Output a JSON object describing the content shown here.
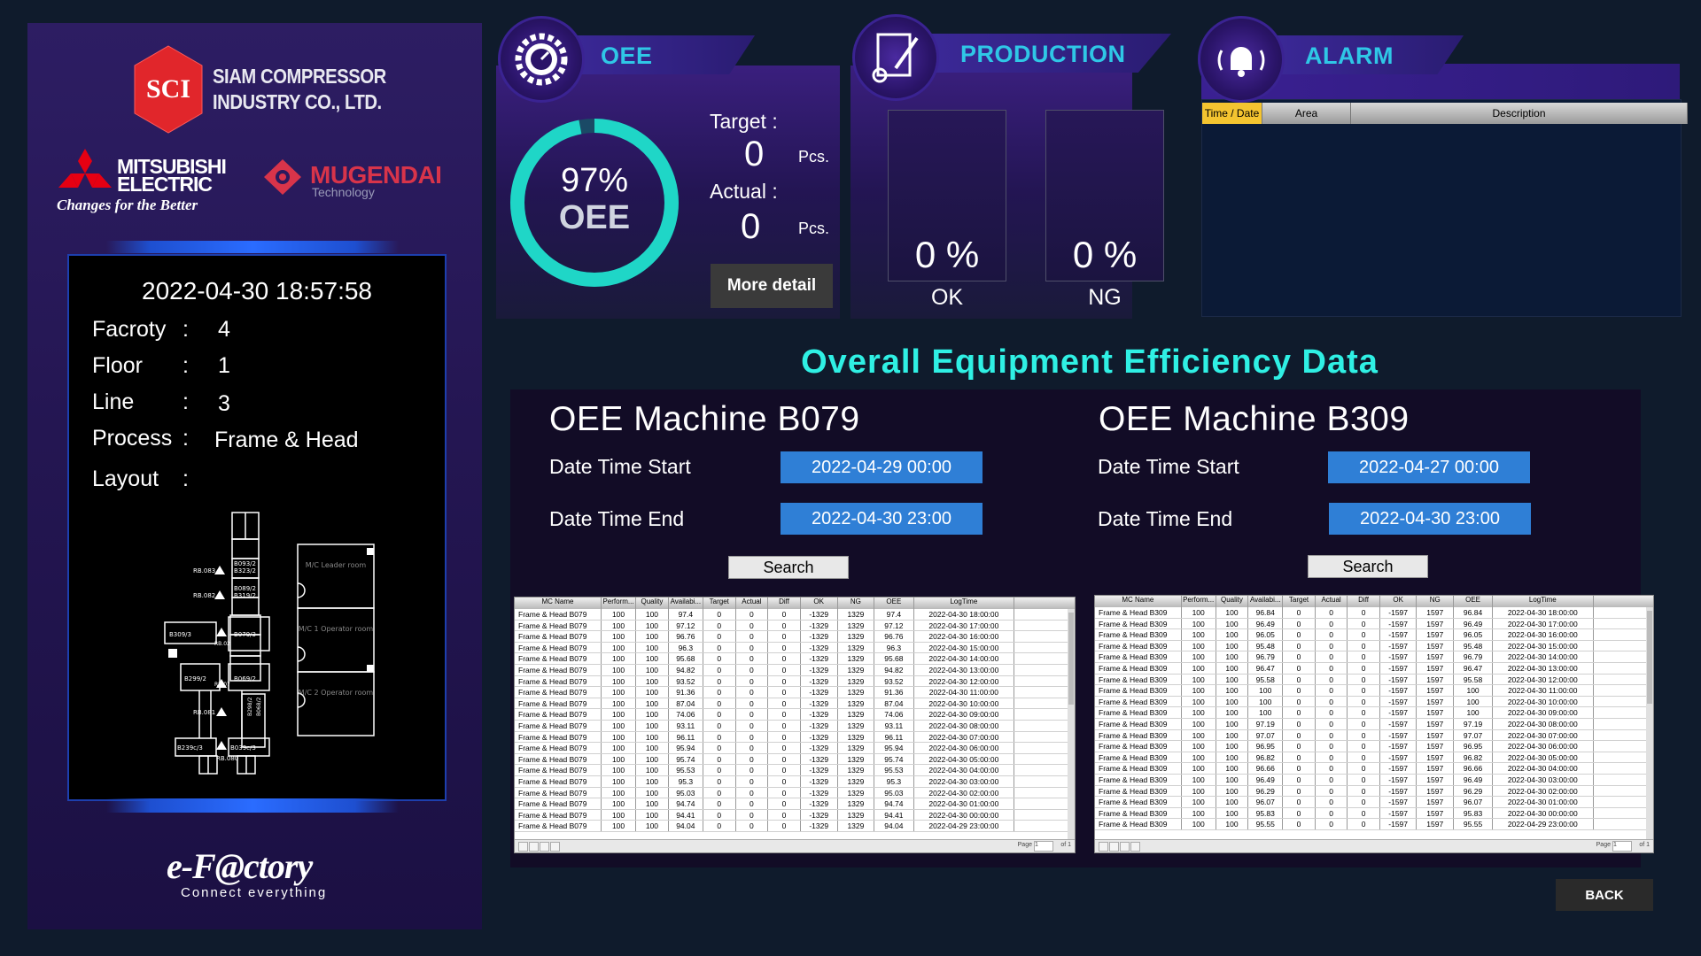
{
  "company": {
    "logo_text": "SCI",
    "name_line1": "SIAM COMPRESSOR",
    "name_line2": "INDUSTRY CO., LTD.",
    "mitsubishi_line1": "MITSUBISHI",
    "mitsubishi_line2": "ELECTRIC",
    "mitsubishi_slogan": "Changes for the Better",
    "mugendai_name": "MUGENDAI",
    "mugendai_sub": "Technology",
    "efactory": "e-F@ctory",
    "efactory_sub": "Connect everything"
  },
  "info": {
    "datetime": "2022-04-30 18:57:58",
    "factory_label": "Facroty",
    "factory_value": "4",
    "floor_label": "Floor",
    "floor_value": "1",
    "line_label": "Line",
    "line_value": "3",
    "process_label": "Process",
    "process_value": "Frame & Head",
    "layout_label": "Layout",
    "colon": ":",
    "layout_labels": {
      "rb083": "RB.083",
      "rb082": "RB.082",
      "rb081": "RB.081",
      "rb080": "RB.080",
      "b093": "B093/2",
      "b323": "B323/2",
      "b089": "B089/2",
      "b319": "B319/2",
      "b309": "B309/3",
      "b079": "B079/3",
      "b299": "B299/2",
      "b069": "B069/2",
      "b239": "B239c/3",
      "b039": "B039c/3",
      "rb02": "RB.02",
      "rb07": "RB.07",
      "b298": "B298/2",
      "b068": "B068/2",
      "mc_leader": "M/C Leader room",
      "mc_op1": "M/C 1 Operator room",
      "mc_op2": "M/C 2 Operator room"
    }
  },
  "oee_card": {
    "title": "OEE",
    "percent": "97%",
    "percent_value": 97,
    "gauge_label": "OEE",
    "target_label": "Target :",
    "target_value": "0",
    "target_unit": "Pcs.",
    "actual_label": "Actual :",
    "actual_value": "0",
    "actual_unit": "Pcs.",
    "more_button": "More detail",
    "gauge_color": "#1fd6c7"
  },
  "production_card": {
    "title": "PRODUCTION",
    "ok_percent": "0 %",
    "ok_label": "OK",
    "ng_percent": "0 %",
    "ng_label": "NG"
  },
  "alarm_card": {
    "title": "ALARM",
    "columns": [
      "Time / Date",
      "Area",
      "Description"
    ]
  },
  "section_title": "Overall Equipment Efficiency Data",
  "columns": [
    "MC Name",
    "Perform...",
    "Quality",
    "Availabi...",
    "Target",
    "Actual",
    "Diff",
    "OK",
    "NG",
    "OEE",
    "LogTime"
  ],
  "machine_b079": {
    "title": "OEE Machine B079",
    "start_label": "Date Time Start",
    "start_value": "2022-04-29 00:00",
    "end_label": "Date Time End",
    "end_value": "2022-04-30 23:00",
    "search": "Search",
    "rows": [
      [
        "Frame & Head B079",
        "100",
        "100",
        "97.4",
        "0",
        "0",
        "0",
        "-1329",
        "1329",
        "97.4",
        "2022-04-30 18:00:00"
      ],
      [
        "Frame & Head B079",
        "100",
        "100",
        "97.12",
        "0",
        "0",
        "0",
        "-1329",
        "1329",
        "97.12",
        "2022-04-30 17:00:00"
      ],
      [
        "Frame & Head B079",
        "100",
        "100",
        "96.76",
        "0",
        "0",
        "0",
        "-1329",
        "1329",
        "96.76",
        "2022-04-30 16:00:00"
      ],
      [
        "Frame & Head B079",
        "100",
        "100",
        "96.3",
        "0",
        "0",
        "0",
        "-1329",
        "1329",
        "96.3",
        "2022-04-30 15:00:00"
      ],
      [
        "Frame & Head B079",
        "100",
        "100",
        "95.68",
        "0",
        "0",
        "0",
        "-1329",
        "1329",
        "95.68",
        "2022-04-30 14:00:00"
      ],
      [
        "Frame & Head B079",
        "100",
        "100",
        "94.82",
        "0",
        "0",
        "0",
        "-1329",
        "1329",
        "94.82",
        "2022-04-30 13:00:00"
      ],
      [
        "Frame & Head B079",
        "100",
        "100",
        "93.52",
        "0",
        "0",
        "0",
        "-1329",
        "1329",
        "93.52",
        "2022-04-30 12:00:00"
      ],
      [
        "Frame & Head B079",
        "100",
        "100",
        "91.36",
        "0",
        "0",
        "0",
        "-1329",
        "1329",
        "91.36",
        "2022-04-30 11:00:00"
      ],
      [
        "Frame & Head B079",
        "100",
        "100",
        "87.04",
        "0",
        "0",
        "0",
        "-1329",
        "1329",
        "87.04",
        "2022-04-30 10:00:00"
      ],
      [
        "Frame & Head B079",
        "100",
        "100",
        "74.06",
        "0",
        "0",
        "0",
        "-1329",
        "1329",
        "74.06",
        "2022-04-30 09:00:00"
      ],
      [
        "Frame & Head B079",
        "100",
        "100",
        "93.11",
        "0",
        "0",
        "0",
        "-1329",
        "1329",
        "93.11",
        "2022-04-30 08:00:00"
      ],
      [
        "Frame & Head B079",
        "100",
        "100",
        "96.11",
        "0",
        "0",
        "0",
        "-1329",
        "1329",
        "96.11",
        "2022-04-30 07:00:00"
      ],
      [
        "Frame & Head B079",
        "100",
        "100",
        "95.94",
        "0",
        "0",
        "0",
        "-1329",
        "1329",
        "95.94",
        "2022-04-30 06:00:00"
      ],
      [
        "Frame & Head B079",
        "100",
        "100",
        "95.74",
        "0",
        "0",
        "0",
        "-1329",
        "1329",
        "95.74",
        "2022-04-30 05:00:00"
      ],
      [
        "Frame & Head B079",
        "100",
        "100",
        "95.53",
        "0",
        "0",
        "0",
        "-1329",
        "1329",
        "95.53",
        "2022-04-30 04:00:00"
      ],
      [
        "Frame & Head B079",
        "100",
        "100",
        "95.3",
        "0",
        "0",
        "0",
        "-1329",
        "1329",
        "95.3",
        "2022-04-30 03:00:00"
      ],
      [
        "Frame & Head B079",
        "100",
        "100",
        "95.03",
        "0",
        "0",
        "0",
        "-1329",
        "1329",
        "95.03",
        "2022-04-30 02:00:00"
      ],
      [
        "Frame & Head B079",
        "100",
        "100",
        "94.74",
        "0",
        "0",
        "0",
        "-1329",
        "1329",
        "94.74",
        "2022-04-30 01:00:00"
      ],
      [
        "Frame & Head B079",
        "100",
        "100",
        "94.41",
        "0",
        "0",
        "0",
        "-1329",
        "1329",
        "94.41",
        "2022-04-30 00:00:00"
      ],
      [
        "Frame & Head B079",
        "100",
        "100",
        "94.04",
        "0",
        "0",
        "0",
        "-1329",
        "1329",
        "94.04",
        "2022-04-29 23:00:00"
      ]
    ]
  },
  "machine_b309": {
    "title": "OEE Machine B309",
    "start_label": "Date Time Start",
    "start_value": "2022-04-27 00:00",
    "end_label": "Date Time End",
    "end_value": "2022-04-30 23:00",
    "search": "Search",
    "rows": [
      [
        "Frame & Head B309",
        "100",
        "100",
        "96.84",
        "0",
        "0",
        "0",
        "-1597",
        "1597",
        "96.84",
        "2022-04-30 18:00:00"
      ],
      [
        "Frame & Head B309",
        "100",
        "100",
        "96.49",
        "0",
        "0",
        "0",
        "-1597",
        "1597",
        "96.49",
        "2022-04-30 17:00:00"
      ],
      [
        "Frame & Head B309",
        "100",
        "100",
        "96.05",
        "0",
        "0",
        "0",
        "-1597",
        "1597",
        "96.05",
        "2022-04-30 16:00:00"
      ],
      [
        "Frame & Head B309",
        "100",
        "100",
        "95.48",
        "0",
        "0",
        "0",
        "-1597",
        "1597",
        "95.48",
        "2022-04-30 15:00:00"
      ],
      [
        "Frame & Head B309",
        "100",
        "100",
        "96.79",
        "0",
        "0",
        "0",
        "-1597",
        "1597",
        "96.79",
        "2022-04-30 14:00:00"
      ],
      [
        "Frame & Head B309",
        "100",
        "100",
        "96.47",
        "0",
        "0",
        "0",
        "-1597",
        "1597",
        "96.47",
        "2022-04-30 13:00:00"
      ],
      [
        "Frame & Head B309",
        "100",
        "100",
        "95.58",
        "0",
        "0",
        "0",
        "-1597",
        "1597",
        "95.58",
        "2022-04-30 12:00:00"
      ],
      [
        "Frame & Head B309",
        "100",
        "100",
        "100",
        "0",
        "0",
        "0",
        "-1597",
        "1597",
        "100",
        "2022-04-30 11:00:00"
      ],
      [
        "Frame & Head B309",
        "100",
        "100",
        "100",
        "0",
        "0",
        "0",
        "-1597",
        "1597",
        "100",
        "2022-04-30 10:00:00"
      ],
      [
        "Frame & Head B309",
        "100",
        "100",
        "100",
        "0",
        "0",
        "0",
        "-1597",
        "1597",
        "100",
        "2022-04-30 09:00:00"
      ],
      [
        "Frame & Head B309",
        "100",
        "100",
        "97.19",
        "0",
        "0",
        "0",
        "-1597",
        "1597",
        "97.19",
        "2022-04-30 08:00:00"
      ],
      [
        "Frame & Head B309",
        "100",
        "100",
        "97.07",
        "0",
        "0",
        "0",
        "-1597",
        "1597",
        "97.07",
        "2022-04-30 07:00:00"
      ],
      [
        "Frame & Head B309",
        "100",
        "100",
        "96.95",
        "0",
        "0",
        "0",
        "-1597",
        "1597",
        "96.95",
        "2022-04-30 06:00:00"
      ],
      [
        "Frame & Head B309",
        "100",
        "100",
        "96.82",
        "0",
        "0",
        "0",
        "-1597",
        "1597",
        "96.82",
        "2022-04-30 05:00:00"
      ],
      [
        "Frame & Head B309",
        "100",
        "100",
        "96.66",
        "0",
        "0",
        "0",
        "-1597",
        "1597",
        "96.66",
        "2022-04-30 04:00:00"
      ],
      [
        "Frame & Head B309",
        "100",
        "100",
        "96.49",
        "0",
        "0",
        "0",
        "-1597",
        "1597",
        "96.49",
        "2022-04-30 03:00:00"
      ],
      [
        "Frame & Head B309",
        "100",
        "100",
        "96.29",
        "0",
        "0",
        "0",
        "-1597",
        "1597",
        "96.29",
        "2022-04-30 02:00:00"
      ],
      [
        "Frame & Head B309",
        "100",
        "100",
        "96.07",
        "0",
        "0",
        "0",
        "-1597",
        "1597",
        "96.07",
        "2022-04-30 01:00:00"
      ],
      [
        "Frame & Head B309",
        "100",
        "100",
        "95.83",
        "0",
        "0",
        "0",
        "-1597",
        "1597",
        "95.83",
        "2022-04-30 00:00:00"
      ],
      [
        "Frame & Head B309",
        "100",
        "100",
        "95.55",
        "0",
        "0",
        "0",
        "-1597",
        "1597",
        "95.55",
        "2022-04-29 23:00:00"
      ]
    ]
  },
  "grid_footer": {
    "page_label": "Page",
    "page_value": "1",
    "of_label": "of 1"
  },
  "back_button": "BACK"
}
